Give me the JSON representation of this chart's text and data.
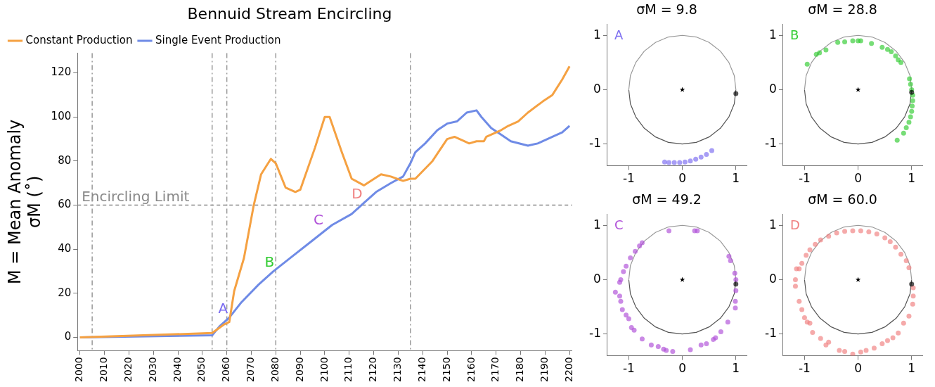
{
  "chart_data": [
    {
      "type": "line",
      "title": "Bennuid Stream Encircling",
      "ylabel": "M = Mean Anomaly\nσM (˚)",
      "xlim": [
        1999,
        2201
      ],
      "xticks": [
        2000,
        2010,
        2020,
        2030,
        2040,
        2050,
        2060,
        2070,
        2080,
        2090,
        2100,
        2110,
        2120,
        2130,
        2140,
        2150,
        2160,
        2170,
        2180,
        2190,
        2200
      ],
      "ylim": [
        -6,
        129
      ],
      "yticks": [
        0,
        20,
        40,
        60,
        80,
        100,
        120
      ],
      "grid": false,
      "legend": "top left",
      "marker": "none",
      "series": [
        {
          "name": "Constant Production",
          "color": "#f5a142",
          "x": [
            2000,
            2054,
            2059,
            2061,
            2063,
            2067,
            2071,
            2074,
            2078,
            2080,
            2084,
            2088,
            2090,
            2096,
            2100,
            2102,
            2107,
            2111,
            2116,
            2123,
            2127,
            2132,
            2135,
            2137,
            2144,
            2150,
            2153,
            2157,
            2159,
            2162,
            2165,
            2166,
            2172,
            2175,
            2179,
            2183,
            2189,
            2193,
            2197,
            2200
          ],
          "values": [
            0,
            2,
            6,
            7,
            21,
            36,
            60,
            74,
            81,
            79,
            68,
            66,
            67,
            86,
            100,
            100,
            84,
            72,
            69,
            74,
            73,
            71,
            72,
            72,
            80,
            90,
            91,
            89,
            88,
            89,
            89,
            91,
            94,
            96,
            98,
            102,
            107,
            110,
            117,
            123
          ]
        },
        {
          "name": "Single Event Production",
          "color": "#6f8be6",
          "x": [
            2000,
            2054,
            2057,
            2061,
            2066,
            2073,
            2079,
            2087,
            2095,
            2103,
            2111,
            2116,
            2121,
            2127,
            2132,
            2135,
            2137,
            2141,
            2146,
            2150,
            2154,
            2158,
            2162,
            2164,
            2168,
            2172,
            2176,
            2183,
            2187,
            2193,
            2197,
            2200
          ],
          "values": [
            0,
            1,
            5,
            9,
            16,
            24,
            30,
            37,
            44,
            51,
            56,
            61,
            66,
            70,
            73,
            79,
            84,
            88,
            94,
            97,
            98,
            102,
            103,
            100,
            95,
            92,
            89,
            87,
            88,
            91,
            93,
            96
          ]
        }
      ],
      "ref_lines": [
        {
          "axis": "y",
          "value": 60,
          "label": "Encircling Limit",
          "color": "#888888",
          "line_style": "dashed"
        },
        {
          "axis": "x",
          "value": 2005,
          "color": "#999999",
          "line_style": "dashed"
        },
        {
          "axis": "x",
          "value": 2054,
          "color": "#999999",
          "line_style": "dashed"
        },
        {
          "axis": "x",
          "value": 2060,
          "color": "#999999",
          "line_style": "dashed"
        },
        {
          "axis": "x",
          "value": 2080,
          "color": "#999999",
          "line_style": "dashed"
        },
        {
          "axis": "x",
          "value": 2135,
          "color": "#999999",
          "line_style": "dashed"
        }
      ],
      "annotations": [
        {
          "text": "A",
          "x": 2061,
          "y": 9
        },
        {
          "text": "B",
          "x": 2080,
          "y": 30
        },
        {
          "text": "C",
          "x": 2100,
          "y": 49
        },
        {
          "text": "D",
          "x": 2116,
          "y": 61
        }
      ]
    },
    {
      "type": "scatter",
      "title": "σM = 9.8",
      "xlim": [
        -1.4,
        1.2
      ],
      "xticks": [
        -1,
        0,
        1
      ],
      "ylim": [
        -1.4,
        1.2
      ],
      "yticks": [
        -1,
        0,
        1
      ],
      "grid": false,
      "legend": false,
      "annotations": [
        "A"
      ],
      "series": [
        {
          "type": "line",
          "marker": "none",
          "color": "#999999",
          "x": [
            -1,
            -0.97,
            -0.87,
            -0.71,
            -0.5,
            -0.26,
            0,
            0.26,
            0.5,
            0.71,
            0.87,
            0.97,
            1
          ],
          "values": [
            0,
            0.26,
            0.5,
            0.71,
            0.87,
            0.97,
            1,
            0.97,
            0.87,
            0.71,
            0.5,
            0.26,
            0
          ]
        },
        {
          "marker": "circle",
          "color": "#7b6cf0",
          "x": [
            -0.33,
            -0.25,
            -0.15,
            -0.05,
            0.05,
            0.15,
            0.25,
            0.35,
            0.45,
            0.55
          ],
          "values": [
            -1.33,
            -1.34,
            -1.34,
            -1.34,
            -1.33,
            -1.31,
            -1.28,
            -1.24,
            -1.19,
            -1.12
          ]
        },
        {
          "marker": "star",
          "color": "#000000",
          "x": [
            0
          ],
          "values": [
            0
          ]
        },
        {
          "marker": "circle",
          "color": "#000000",
          "x": [
            1
          ],
          "values": [
            -0.07
          ]
        },
        {
          "type": "line",
          "marker": "none",
          "color": "#555555",
          "x": [
            -1,
            -0.97,
            -0.87,
            -0.71,
            -0.5,
            -0.26,
            0,
            0.26,
            0.5,
            0.71,
            0.87,
            0.97,
            1
          ],
          "values": [
            0,
            -0.26,
            -0.5,
            -0.71,
            -0.87,
            -0.97,
            -1,
            -0.97,
            -0.87,
            -0.71,
            -0.5,
            -0.26,
            0
          ]
        }
      ]
    },
    {
      "type": "scatter",
      "title": "σM = 28.8",
      "xlim": [
        -1.4,
        1.2
      ],
      "xticks": [
        -1,
        0,
        1
      ],
      "ylim": [
        -1.4,
        1.2
      ],
      "yticks": [
        -1,
        0,
        1
      ],
      "grid": false,
      "legend": false,
      "annotations": [
        "B"
      ],
      "series": [
        {
          "type": "line",
          "marker": "none",
          "color": "#999999",
          "x": [
            -1,
            -0.97,
            -0.87,
            -0.71,
            -0.5,
            -0.26,
            0,
            0.26,
            0.5,
            0.71,
            0.87,
            0.97,
            1
          ],
          "values": [
            0,
            0.26,
            0.5,
            0.71,
            0.87,
            0.97,
            1,
            0.97,
            0.87,
            0.71,
            0.5,
            0.26,
            0
          ]
        },
        {
          "marker": "circle",
          "color": "#33cc33",
          "x": [
            -0.95,
            -0.78,
            -0.72,
            -0.6,
            -0.38,
            -0.25,
            -0.1,
            0,
            0.05,
            0.25,
            0.45,
            0.55,
            0.62,
            0.7,
            0.75,
            0.8,
            0.96,
            0.98,
            1,
            1.02,
            1.02,
            1.01,
            1,
            0.98,
            0.95,
            0.9,
            0.85,
            0.73
          ],
          "values": [
            0.47,
            0.65,
            0.68,
            0.73,
            0.87,
            0.88,
            0.9,
            0.9,
            0.9,
            0.85,
            0.78,
            0.74,
            0.7,
            0.62,
            0.55,
            0.5,
            0.2,
            0.1,
            0,
            -0.1,
            -0.2,
            -0.3,
            -0.4,
            -0.5,
            -0.6,
            -0.7,
            -0.8,
            -0.93
          ]
        },
        {
          "marker": "star",
          "color": "#000000",
          "x": [
            0
          ],
          "values": [
            0
          ]
        },
        {
          "marker": "circle",
          "color": "#000000",
          "x": [
            1
          ],
          "values": [
            -0.05
          ]
        },
        {
          "type": "line",
          "marker": "none",
          "color": "#555555",
          "x": [
            -1,
            -0.97,
            -0.87,
            -0.71,
            -0.5,
            -0.26,
            0,
            0.26,
            0.5,
            0.71,
            0.87,
            0.97,
            1
          ],
          "values": [
            0,
            -0.26,
            -0.5,
            -0.71,
            -0.87,
            -0.97,
            -1,
            -0.97,
            -0.87,
            -0.71,
            -0.5,
            -0.26,
            0
          ]
        }
      ]
    },
    {
      "type": "scatter",
      "title": "σM = 49.2",
      "xlim": [
        -1.4,
        1.2
      ],
      "xticks": [
        -1,
        0,
        1
      ],
      "ylim": [
        -1.4,
        1.2
      ],
      "yticks": [
        -1,
        0,
        1
      ],
      "grid": false,
      "legend": false,
      "annotations": [
        "C"
      ],
      "series": [
        {
          "type": "line",
          "marker": "none",
          "color": "#999999",
          "x": [
            -1,
            -0.97,
            -0.87,
            -0.71,
            -0.5,
            -0.26,
            0,
            0.26,
            0.5,
            0.71,
            0.87,
            0.97,
            1
          ],
          "values": [
            0,
            0.26,
            0.5,
            0.71,
            0.87,
            0.97,
            1,
            0.97,
            0.87,
            0.71,
            0.5,
            0.26,
            0
          ]
        },
        {
          "marker": "circle",
          "color": "#b050d8",
          "x": [
            -0.75,
            -0.8,
            -0.88,
            -0.97,
            -1.05,
            -1.1,
            -1.15,
            -1.17,
            -1.25,
            -1.17,
            -1.15,
            -1.12,
            -1.05,
            -1.0,
            -0.95,
            -0.9,
            -0.75,
            -0.58,
            -0.45,
            -0.35,
            -0.3,
            -0.18,
            0.15,
            0.35,
            0.45,
            0.58,
            0.62,
            0.72,
            0.85,
            0.99,
            0.99,
            1.0,
            1.0,
            0.98,
            0.9,
            0.87,
            0.28,
            0.23,
            -0.25
          ],
          "values": [
            0.68,
            0.62,
            0.52,
            0.4,
            0.25,
            0.15,
            0.0,
            -0.05,
            -0.23,
            -0.3,
            -0.4,
            -0.55,
            -0.65,
            -0.72,
            -0.88,
            -0.93,
            -1.09,
            -1.2,
            -1.23,
            -1.28,
            -1.3,
            -1.32,
            -1.29,
            -1.2,
            -1.18,
            -1.1,
            -1.07,
            -0.96,
            -0.78,
            -0.52,
            -0.4,
            -0.2,
            0.0,
            0.12,
            0.35,
            0.43,
            0.9,
            0.9,
            0.9
          ]
        },
        {
          "marker": "star",
          "color": "#000000",
          "x": [
            0
          ],
          "values": [
            0
          ]
        },
        {
          "marker": "circle",
          "color": "#000000",
          "x": [
            1
          ],
          "values": [
            -0.08
          ]
        },
        {
          "type": "line",
          "marker": "none",
          "color": "#555555",
          "x": [
            -1,
            -0.97,
            -0.87,
            -0.71,
            -0.5,
            -0.26,
            0,
            0.26,
            0.5,
            0.71,
            0.87,
            0.97,
            1
          ],
          "values": [
            0,
            -0.26,
            -0.5,
            -0.71,
            -0.87,
            -0.97,
            -1,
            -0.97,
            -0.87,
            -0.71,
            -0.5,
            -0.26,
            0
          ]
        }
      ]
    },
    {
      "type": "scatter",
      "title": "σM = 60.0",
      "xlim": [
        -1.4,
        1.2
      ],
      "xticks": [
        -1,
        0,
        1
      ],
      "ylim": [
        -1.4,
        1.2
      ],
      "yticks": [
        -1,
        0,
        1
      ],
      "grid": false,
      "legend": false,
      "annotations": [
        "D"
      ],
      "series": [
        {
          "type": "line",
          "marker": "none",
          "color": "#999999",
          "x": [
            -1,
            -0.97,
            -0.87,
            -0.71,
            -0.5,
            -0.26,
            0,
            0.26,
            0.5,
            0.71,
            0.87,
            0.97,
            1
          ],
          "values": [
            0,
            0.26,
            0.5,
            0.71,
            0.87,
            0.97,
            1,
            0.97,
            0.87,
            0.71,
            0.5,
            0.26,
            0
          ]
        },
        {
          "marker": "circle",
          "color": "#f08080",
          "x": [
            -0.7,
            -0.55,
            -0.4,
            -0.25,
            -0.1,
            0.05,
            0.2,
            0.35,
            0.5,
            0.6,
            0.7,
            0.8,
            0.9,
            0.95,
            -0.8,
            -0.9,
            -0.97,
            -1.05,
            -1.1,
            -1.15,
            -1.17,
            -1.17,
            -1.1,
            -1.05,
            -1.0,
            -0.95,
            -0.9,
            -0.85,
            -0.7,
            -0.6,
            -0.55,
            -0.35,
            -0.25,
            -0.1,
            0.05,
            0.15,
            0.3,
            0.45,
            0.55,
            0.65,
            0.75,
            0.85,
            0.95,
            1.02,
            1.03,
            1.03
          ],
          "values": [
            0.73,
            0.8,
            0.86,
            0.89,
            0.9,
            0.9,
            0.88,
            0.84,
            0.77,
            0.7,
            0.6,
            0.47,
            0.35,
            0.22,
            0.65,
            0.55,
            0.45,
            0.3,
            0.2,
            0.2,
            0.0,
            -0.12,
            -0.4,
            -0.55,
            -0.7,
            -0.78,
            -0.8,
            -0.97,
            -1.08,
            -1.2,
            -1.15,
            -1.3,
            -1.32,
            -1.37,
            -1.33,
            -1.3,
            -1.26,
            -1.18,
            -1.12,
            -1.07,
            -0.98,
            -0.8,
            -0.67,
            -0.45,
            -0.3,
            -0.15
          ]
        },
        {
          "marker": "star",
          "color": "#000000",
          "x": [
            0
          ],
          "values": [
            0
          ]
        },
        {
          "marker": "circle",
          "color": "#000000",
          "x": [
            1
          ],
          "values": [
            -0.08
          ]
        },
        {
          "type": "line",
          "marker": "none",
          "color": "#555555",
          "x": [
            -1,
            -0.97,
            -0.87,
            -0.71,
            -0.5,
            -0.26,
            0,
            0.26,
            0.5,
            0.71,
            0.87,
            0.97,
            1
          ],
          "values": [
            0,
            -0.26,
            -0.5,
            -0.71,
            -0.87,
            -0.97,
            -1,
            -0.97,
            -0.87,
            -0.71,
            -0.5,
            -0.26,
            0
          ]
        }
      ]
    }
  ]
}
